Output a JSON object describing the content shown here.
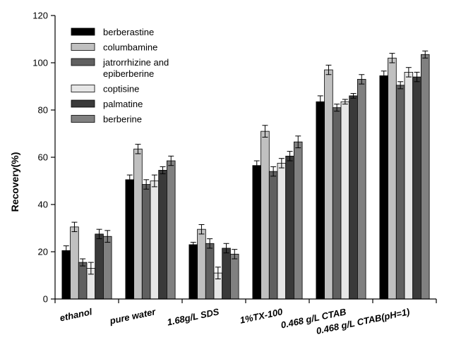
{
  "chart_data": {
    "type": "bar",
    "title": "",
    "xlabel": "",
    "ylabel": "Recovery(%)",
    "ylim": [
      0,
      120
    ],
    "yticks": [
      0,
      20,
      40,
      60,
      80,
      100,
      120
    ],
    "grid": false,
    "legend_position": "top-left",
    "categories": [
      "ethanol",
      "pure water",
      "1.68g/L SDS",
      "1%TX-100",
      "0.468 g/L CTAB",
      "0.468 g/L CTAB(pH=1)"
    ],
    "series": [
      {
        "name": "berberastine",
        "color": "#000000",
        "values": [
          20.5,
          50.5,
          23,
          56.5,
          83.5,
          94.5
        ],
        "errors": [
          2,
          2,
          1,
          2,
          2.5,
          2
        ]
      },
      {
        "name": "columbamine",
        "color": "#c0c0c0",
        "values": [
          30.5,
          63.5,
          29.5,
          71,
          97,
          102
        ],
        "errors": [
          2,
          2,
          2,
          2.5,
          2,
          2
        ]
      },
      {
        "name": "jatrorrhizine and epiberberine",
        "color": "#606060",
        "values": [
          15.5,
          48.5,
          23.5,
          54,
          81,
          90.5
        ],
        "errors": [
          1.5,
          2,
          2,
          2,
          1.5,
          1.5
        ]
      },
      {
        "name": "coptisine",
        "color": "#e6e6e6",
        "values": [
          13,
          50,
          11,
          57.5,
          83.5,
          96
        ],
        "errors": [
          2.5,
          2.5,
          2.5,
          2,
          1,
          2
        ]
      },
      {
        "name": "palmatine",
        "color": "#3a3a3a",
        "values": [
          27.5,
          54.5,
          21.5,
          60.5,
          86,
          94
        ],
        "errors": [
          2,
          1.5,
          2,
          2,
          1,
          2
        ]
      },
      {
        "name": "berberine",
        "color": "#808080",
        "values": [
          26.5,
          58.5,
          19,
          66.5,
          93,
          103.5
        ],
        "errors": [
          2.5,
          2,
          2,
          2.5,
          2,
          1.5
        ]
      }
    ]
  }
}
